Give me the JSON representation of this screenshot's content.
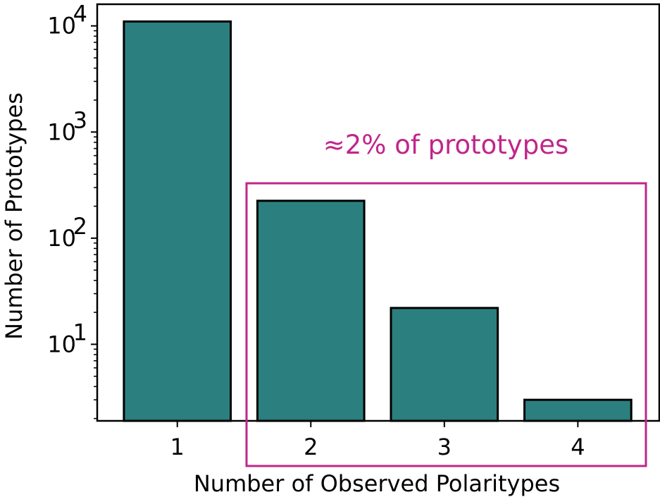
{
  "chart_data": {
    "type": "bar",
    "categories": [
      "1",
      "2",
      "3",
      "4"
    ],
    "values": [
      11000,
      225,
      22,
      3
    ],
    "xlabel": "Number of Observed Polaritypes",
    "ylabel": "Number of Prototypes",
    "yscale": "log",
    "ylim": [
      1.9,
      16000
    ],
    "yticks": [
      {
        "value": 10,
        "base": "10",
        "exp": "1"
      },
      {
        "value": 100,
        "base": "10",
        "exp": "2"
      },
      {
        "value": 1000,
        "base": "10",
        "exp": "3"
      },
      {
        "value": 10000,
        "base": "10",
        "exp": "4"
      }
    ],
    "grid": false,
    "legend": "none",
    "colors": {
      "bar_fill": "#2b7f7f",
      "bar_edge": "#000000",
      "highlight": "#c0268a"
    },
    "annotation": {
      "text": "≈2% of prototypes",
      "encloses_categories": [
        "2",
        "3",
        "4"
      ]
    }
  }
}
